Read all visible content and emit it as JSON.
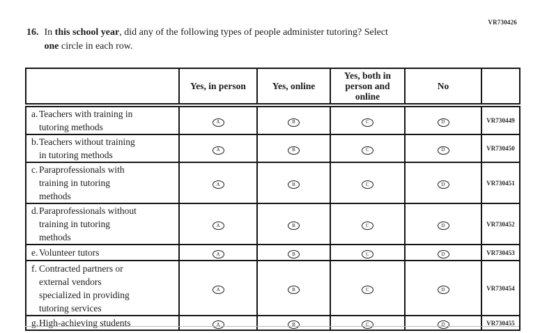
{
  "page": {
    "top_right_code": "VR730426"
  },
  "question": {
    "number": "16.",
    "segments": [
      {
        "text": "In ",
        "bold": false
      },
      {
        "text": "this school year",
        "bold": true
      },
      {
        "text": ", did any of the following types of people administer tutoring? Select\n",
        "bold": false
      },
      {
        "text": "one",
        "bold": true
      },
      {
        "text": " circle in each row.",
        "bold": false
      }
    ]
  },
  "table": {
    "columns": [
      "",
      "Yes, in person",
      "Yes, online",
      "Yes, both in\nperson and\nonline",
      "No",
      ""
    ],
    "option_letters": [
      "A",
      "B",
      "C",
      "D"
    ],
    "rows": [
      {
        "letter": "a.",
        "label": "Teachers with training in\ntutoring methods",
        "code": "VR730449"
      },
      {
        "letter": "b.",
        "label": "Teachers without training\nin tutoring methods",
        "code": "VR730450"
      },
      {
        "letter": "c.",
        "label": "Paraprofessionals with\ntraining in tutoring\nmethods",
        "code": "VR730451"
      },
      {
        "letter": "d.",
        "label": "Paraprofessionals without\ntraining in tutoring\nmethods",
        "code": "VR730452"
      },
      {
        "letter": "e.",
        "label": "Volunteer tutors",
        "code": "VR730453"
      },
      {
        "letter": "f.",
        "label": "Contracted partners or\nexternal vendors\nspecialized in providing\ntutoring services",
        "code": "VR730454"
      },
      {
        "letter": "g.",
        "label": "High-achieving students",
        "code": "VR730455"
      }
    ],
    "colors": {
      "text": "#1b1b1b",
      "border": "#141414",
      "cut_line": "#b9b9b9",
      "background": "#ffffff"
    }
  }
}
